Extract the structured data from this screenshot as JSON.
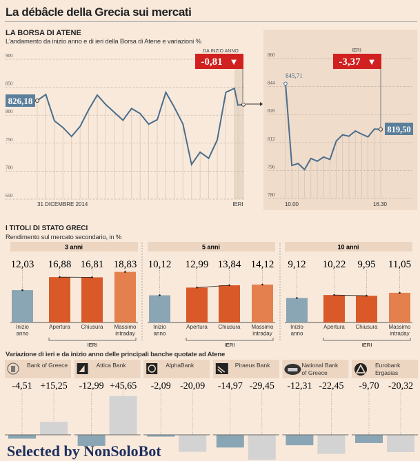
{
  "title": "La débâcle della Grecia sui mercati",
  "borsa": {
    "heading": "LA BORSA DI ATENE",
    "subtitle": "L'andamento da inizio anno e di ieri della Borsa di Atene e variazioni %"
  },
  "titoli": {
    "heading": "I TITOLI DI STATO GRECI",
    "subtitle": "Rendimento sul mercato secondario, in %"
  },
  "banche": {
    "heading": "Variazione di ieri e da inizio anno delle principali banche quotate ad Atene"
  },
  "watermark": "Selected by NonSoloBot",
  "colors": {
    "line": "#4a6d8c",
    "label_box": "#5b7f9b",
    "change_red": "#d0201f",
    "bar_start": "#8aa5b4",
    "bar_ieri": "#d95a28",
    "bar_max": "#e4804e",
    "bank_ieri": "#8aa6b5",
    "bank_ytd": "#d3d3d3",
    "panel": "#efdccb"
  },
  "chart_data": [
    {
      "type": "line",
      "id": "ytd",
      "yticks": [
        900,
        850,
        800,
        750,
        700,
        650
      ],
      "ytick_labels": [
        "900",
        "850",
        "800",
        "750",
        "700",
        "650"
      ],
      "ylim": [
        650,
        900
      ],
      "xlabels": [
        "31 DICEMBRE 2014",
        "IERI"
      ],
      "values": [
        826.18,
        837,
        790,
        778,
        762,
        780,
        810,
        836,
        819,
        805,
        791,
        812,
        803,
        784,
        792,
        841,
        814,
        784,
        712,
        734,
        723,
        756,
        841,
        848,
        818,
        819
      ],
      "start_label": "826,18",
      "change_caption": "DA INZIO ANNO",
      "change_value": "-0,81",
      "change_arrow": "▼",
      "grid": true
    },
    {
      "type": "line",
      "id": "intraday",
      "yticks": [
        860,
        844,
        828,
        812,
        796,
        780
      ],
      "ytick_labels": [
        "860",
        "844",
        "828",
        "812",
        "796",
        "780"
      ],
      "ylim": [
        780,
        860
      ],
      "xlabels": [
        "10.00",
        "16.30"
      ],
      "values": [
        845.71,
        798.9,
        800,
        796.5,
        802.9,
        801.3,
        803.7,
        802.3,
        812.9,
        816.4,
        815.6,
        818.6,
        816.8,
        815.2,
        819.7,
        819.5
      ],
      "start_label": "845,71",
      "end_label": "819,50",
      "change_caption": "IERI",
      "change_value": "-3,37",
      "change_arrow": "▼",
      "grid": true
    },
    {
      "type": "bar",
      "id": "bonds",
      "categories": [
        "Inizio\nanno",
        "Apertura",
        "Chiusura",
        "Massimo\nintraday"
      ],
      "bracket_label": "IERI",
      "groups": [
        {
          "name": "3 anni",
          "values": [
            12.03,
            16.88,
            16.81,
            18.83
          ],
          "labels": [
            "12,03",
            "16,88",
            "16,81",
            "18,83"
          ]
        },
        {
          "name": "5 anni",
          "values": [
            10.12,
            12.99,
            13.84,
            14.12
          ],
          "labels": [
            "10,12",
            "12,99",
            "13,84",
            "14,12"
          ]
        },
        {
          "name": "10 anni",
          "values": [
            9.12,
            10.22,
            9.95,
            11.05
          ],
          "labels": [
            "9,12",
            "10,22",
            "9,95",
            "11,05"
          ]
        }
      ]
    },
    {
      "type": "bar",
      "id": "banks",
      "series_meaning": [
        "ieri",
        "da inizio anno"
      ],
      "banks": [
        {
          "name": "Bank of Greece",
          "logo": "bank-of-greece-logo",
          "values": [
            -4.51,
            15.25
          ],
          "labels": [
            "-4,51",
            "+15,25"
          ]
        },
        {
          "name": "Attica Bank",
          "logo": "attica-bank-logo",
          "values": [
            -12.99,
            45.65
          ],
          "labels": [
            "-12,99",
            "+45,65"
          ]
        },
        {
          "name": "AlphaBank",
          "logo": "alphabank-logo",
          "values": [
            -2.09,
            -20.09
          ],
          "labels": [
            "-2,09",
            "-20,09"
          ]
        },
        {
          "name": "Piraeus Bank",
          "logo": "piraeus-bank-logo",
          "values": [
            -14.97,
            -29.45
          ],
          "labels": [
            "-14,97",
            "-29,45"
          ]
        },
        {
          "name": "National Bank\nof Greece",
          "logo": "national-bank-logo",
          "values": [
            -12.31,
            -22.45
          ],
          "labels": [
            "-12,31",
            "-22,45"
          ]
        },
        {
          "name": "Eurobank\nErgasias",
          "logo": "eurobank-logo",
          "values": [
            -9.7,
            -20.32
          ],
          "labels": [
            "-9,70",
            "-20,32"
          ]
        }
      ]
    }
  ]
}
